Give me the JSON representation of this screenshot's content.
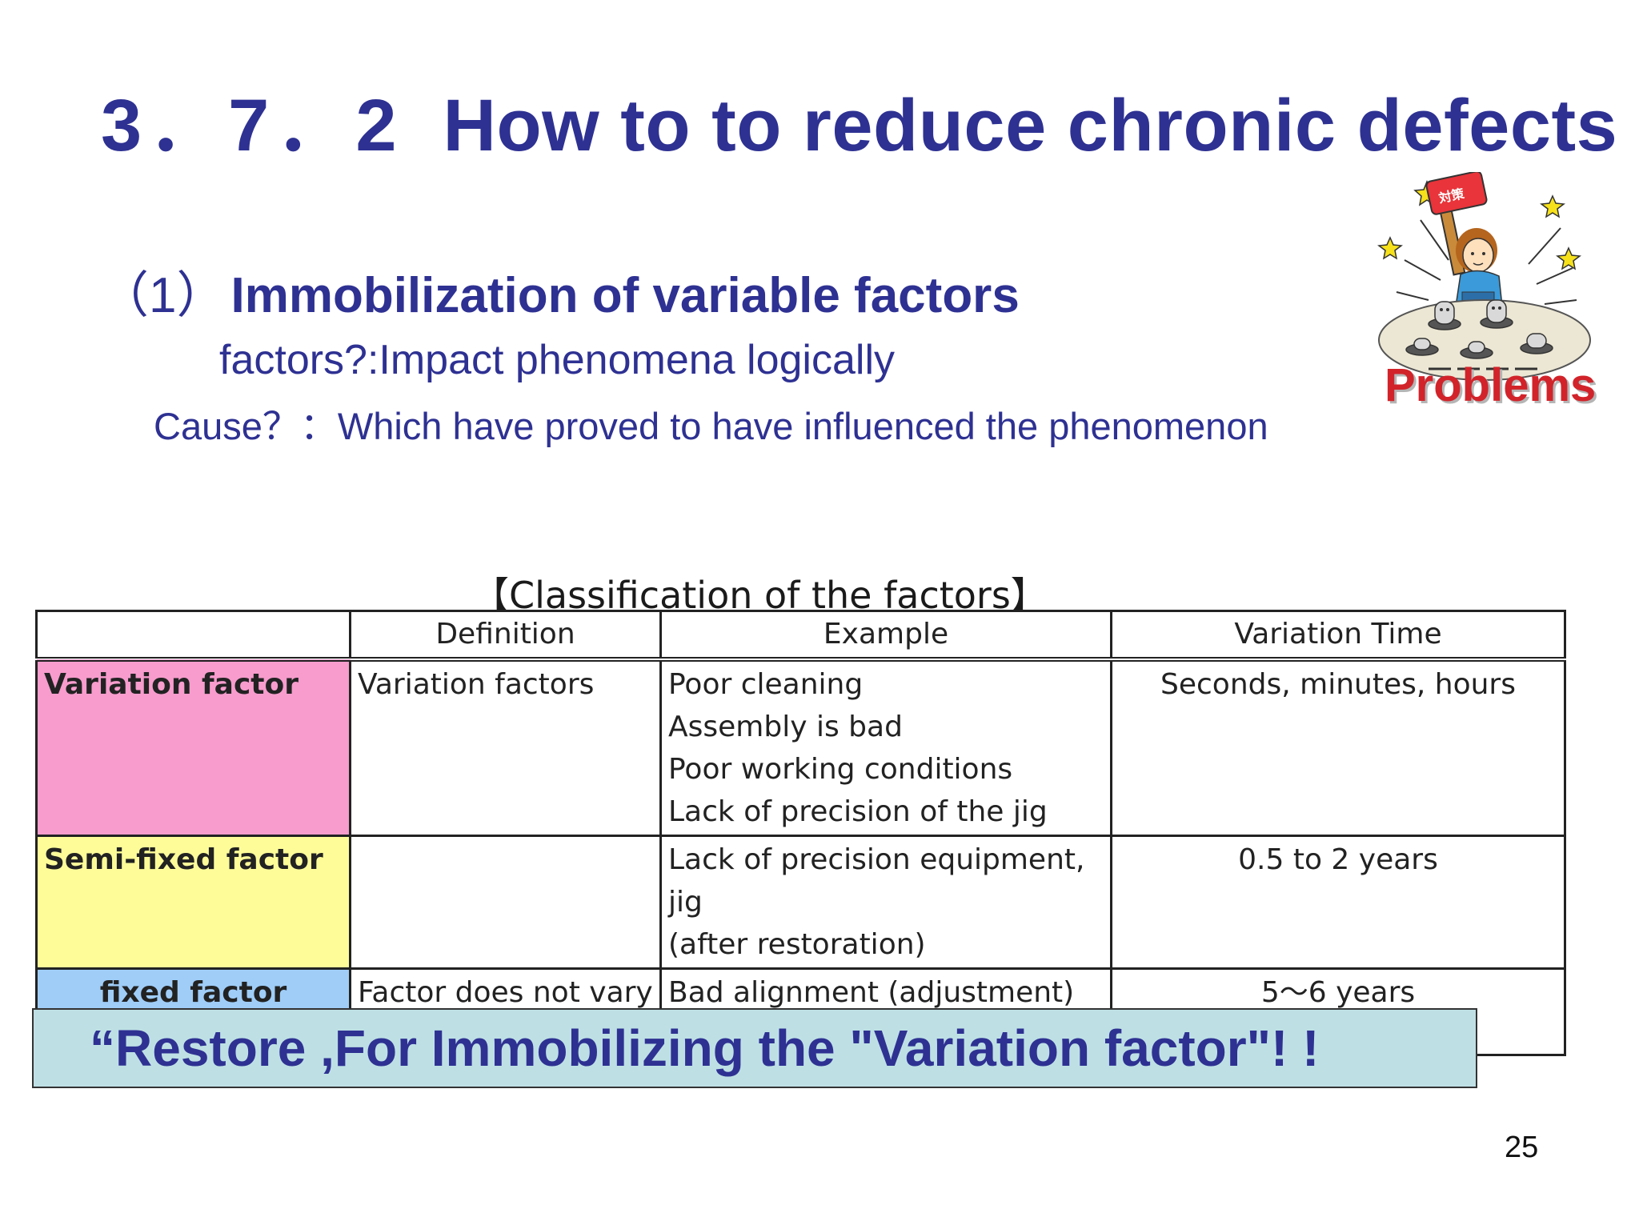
{
  "slide": {
    "title_number": "3．7．2",
    "title_text": "How to to reduce chronic defects",
    "section_number": "（1）",
    "section_heading": "Immobilization of variable factors",
    "line_factors": "factors?:Impact phenomena logically",
    "line_cause": "Cause？：Which have proved to have influenced the phenomenon",
    "clipart_label": "Problems",
    "clipart_sign_text": "対策",
    "table_title": "【Classification of the factors】",
    "table": {
      "headers": [
        "",
        "Definition",
        "Example",
        "Variation Time"
      ],
      "rows": [
        {
          "factor": "Variation factor",
          "definition": "Variation factors",
          "examples": [
            "Poor cleaning",
            "Assembly is bad",
            "Poor working conditions",
            "Lack of precision of the jig"
          ],
          "time": "Seconds, minutes, hours"
        },
        {
          "factor": "Semi-fixed factor",
          "definition": "",
          "examples": [
            "Lack of precision equipment, jig",
            "(after restoration)"
          ],
          "time": "0.5 to 2 years"
        },
        {
          "factor": "fixed factor",
          "definition": "Factor does not vary",
          "examples": [
            "Bad alignment (adjustment)"
          ],
          "time": "5～6 years"
        }
      ]
    },
    "callout": "“Restore ,For Immobilizing the \"Variation factor\"! !",
    "page_number": "25"
  },
  "colors": {
    "title_blue": "#2e3192",
    "variation_factor_bg": "#f79ccd",
    "semi_fixed_factor_bg": "#fdfc99",
    "fixed_factor_bg": "#9fcdf8",
    "callout_bg": "#bee0e5",
    "problems_red": "#d2232a"
  }
}
